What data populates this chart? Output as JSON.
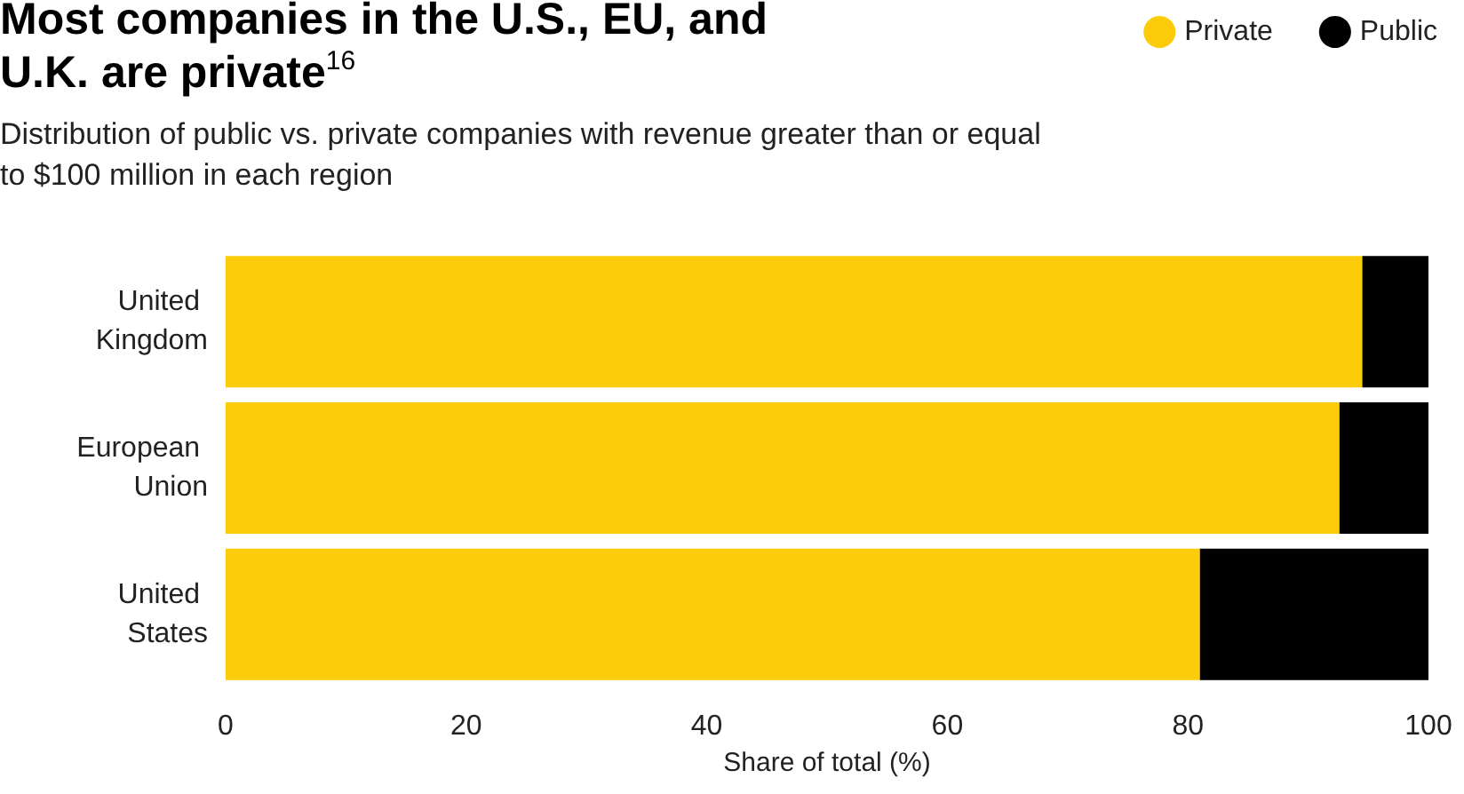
{
  "chart_data": {
    "type": "bar",
    "orientation": "horizontal",
    "stacked": true,
    "title": "Most companies in the U.S., EU, and U.K. are private$^{16}$",
    "subtitle": "Distribution of public vs. private companies with revenue greater than or equal to $100 million in each region",
    "xlabel": "Share of total (%)",
    "categories": [
      "United Kingdom",
      "European Union",
      "United States"
    ],
    "series": [
      {
        "name": "Private",
        "color": "#fccc0a",
        "values": [
          94.5,
          92.6,
          81
        ]
      },
      {
        "name": "Public",
        "color": "#000000",
        "values": [
          5.5,
          7.4,
          19
        ]
      }
    ],
    "xlim": [
      0,
      100
    ],
    "xticks": [
      0,
      20,
      40,
      60,
      80,
      100
    ],
    "grid": false,
    "legend": "top right"
  }
}
